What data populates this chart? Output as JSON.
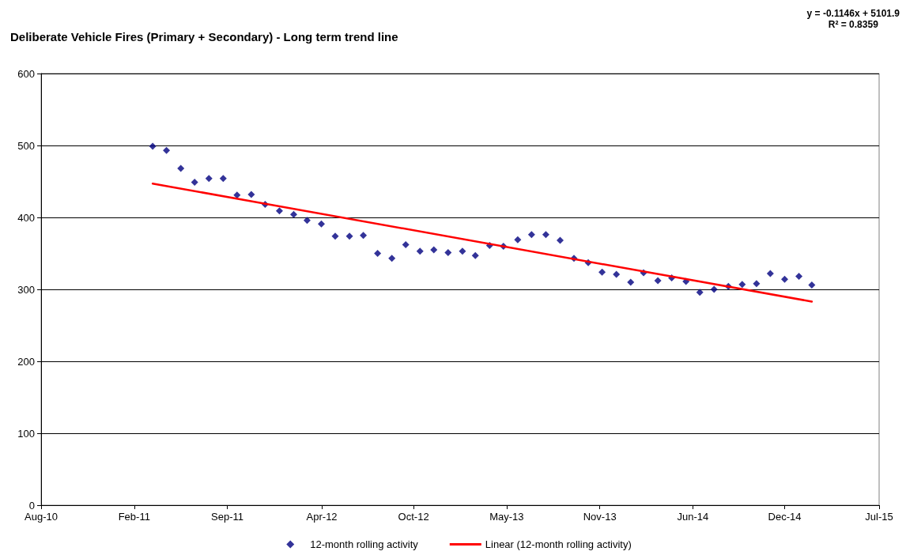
{
  "chart_data": {
    "type": "scatter",
    "title": "Deliberate Vehicle Fires (Primary + Secondary) - Long term trend line",
    "annotations": [
      "y = -0.1146x + 5101.9",
      "R² = 0.8359"
    ],
    "x": [
      "2011-03-31",
      "2011-04-30",
      "2011-05-31",
      "2011-06-30",
      "2011-07-31",
      "2011-08-31",
      "2011-09-30",
      "2011-10-31",
      "2011-11-30",
      "2011-12-31",
      "2012-01-31",
      "2012-02-29",
      "2012-03-31",
      "2012-04-30",
      "2012-05-31",
      "2012-06-30",
      "2012-07-31",
      "2012-08-31",
      "2012-09-30",
      "2012-10-31",
      "2012-11-30",
      "2012-12-31",
      "2013-01-31",
      "2013-02-28",
      "2013-03-31",
      "2013-04-30",
      "2013-05-31",
      "2013-06-30",
      "2013-07-31",
      "2013-08-31",
      "2013-09-30",
      "2013-10-31",
      "2013-11-30",
      "2013-12-31",
      "2014-01-31",
      "2014-02-28",
      "2014-03-31",
      "2014-04-30",
      "2014-05-31",
      "2014-06-30",
      "2014-07-31",
      "2014-08-31",
      "2014-09-30",
      "2014-10-31",
      "2014-11-30",
      "2014-12-31",
      "2015-01-31",
      "2015-02-28"
    ],
    "series": [
      {
        "name": "12-month rolling activity",
        "color": "#000080",
        "marker": "diamond",
        "values": [
          499,
          493,
          468,
          449,
          454,
          454,
          431,
          432,
          418,
          409,
          404,
          396,
          391,
          374,
          374,
          375,
          350,
          343,
          362,
          353,
          355,
          351,
          353,
          347,
          361,
          360,
          369,
          376,
          376,
          368,
          343,
          337,
          324,
          321,
          310,
          323,
          312,
          316,
          311,
          296,
          300,
          304,
          307,
          308,
          322,
          314,
          318,
          306
        ]
      },
      {
        "name": "Linear (12-month rolling activity)",
        "type": "line",
        "color": "#ff0000",
        "line_style": "solid",
        "x": [
          "2011-03-31",
          "2015-02-28"
        ],
        "values": [
          447,
          283
        ]
      }
    ],
    "xlim": [
      "2010-08-01",
      "2015-07-24"
    ],
    "xticks": [
      {
        "value": "2010-08-01",
        "label": "Aug-10"
      },
      {
        "value": "2011-02-19",
        "label": "Feb-11"
      },
      {
        "value": "2011-09-09",
        "label": "Sep-11"
      },
      {
        "value": "2012-04-01",
        "label": "Apr-12"
      },
      {
        "value": "2012-10-17",
        "label": "Oct-12"
      },
      {
        "value": "2013-05-07",
        "label": "May-13"
      },
      {
        "value": "2013-11-25",
        "label": "Nov-13"
      },
      {
        "value": "2014-06-15",
        "label": "Jun-14"
      },
      {
        "value": "2014-12-31",
        "label": "Dec-14"
      },
      {
        "value": "2015-07-24",
        "label": "Jul-15"
      }
    ],
    "ylim": [
      0,
      600
    ],
    "yticks": [
      0,
      100,
      200,
      300,
      400,
      500,
      600
    ],
    "grid": "y",
    "legend": "bottom"
  }
}
